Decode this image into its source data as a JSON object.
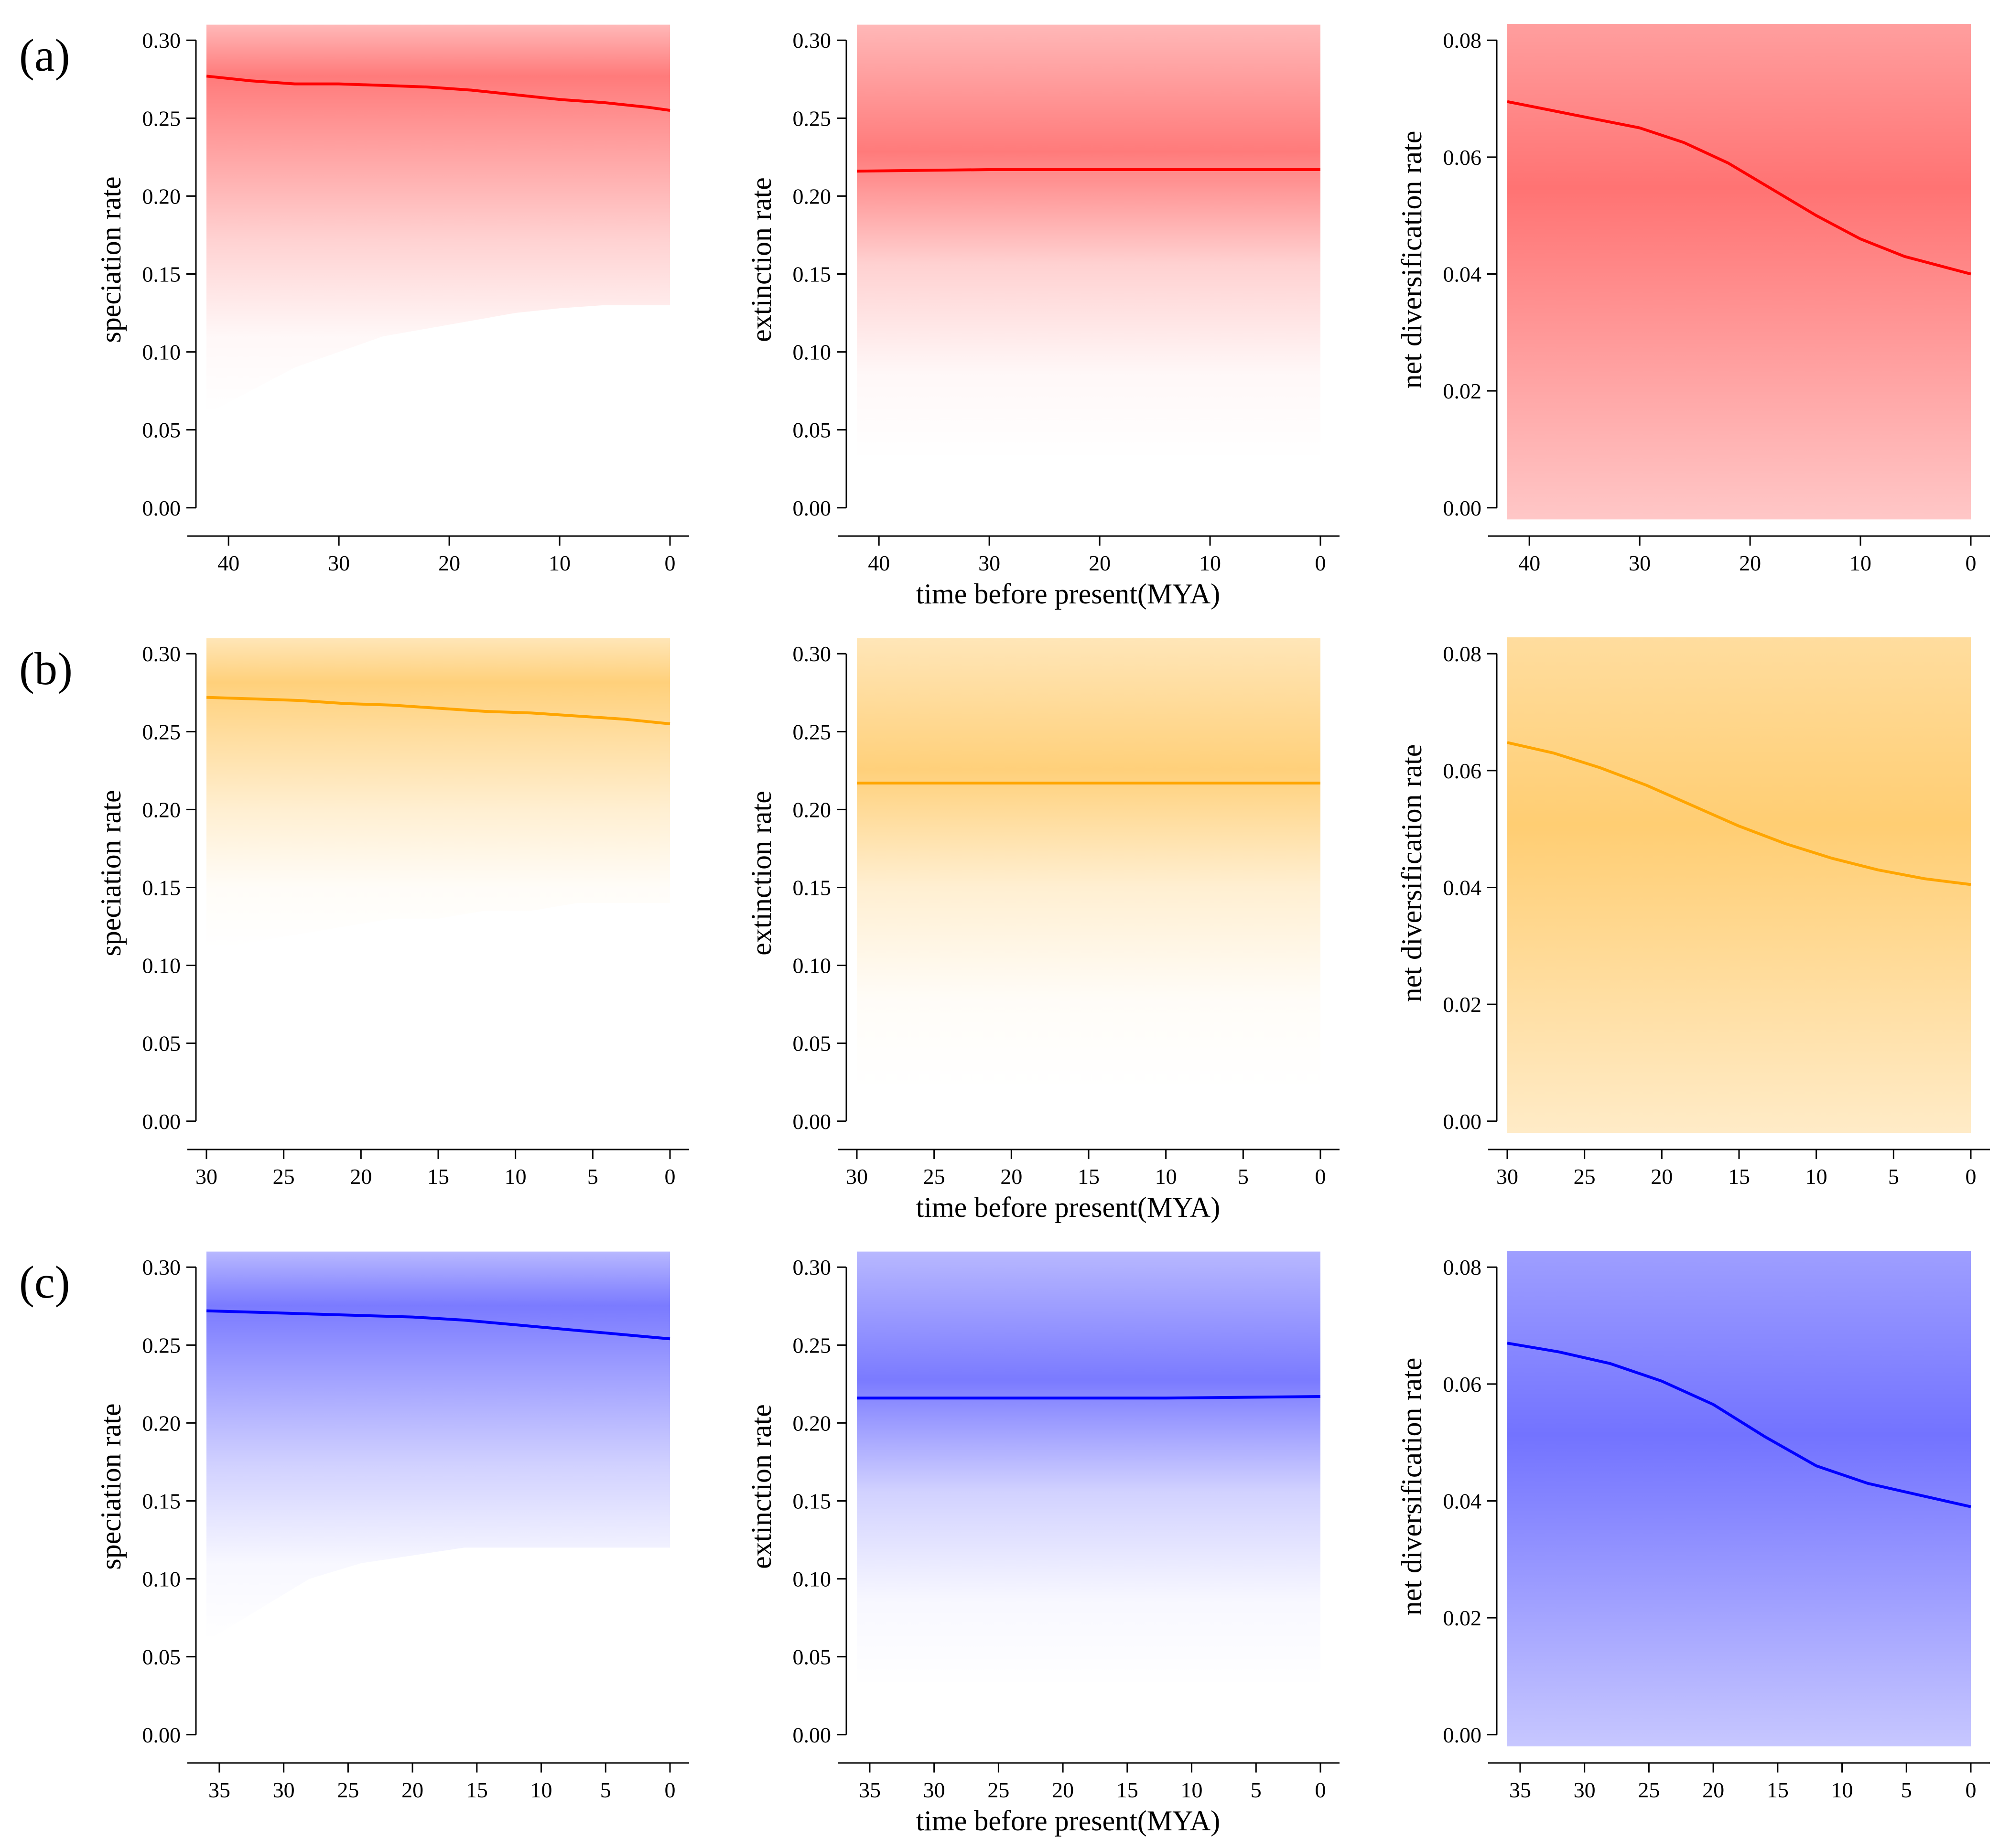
{
  "figure": {
    "rows": [
      {
        "label": "(a)",
        "color": "#ff0000",
        "xlabel": "time before present(MYA)"
      },
      {
        "label": "(b)",
        "color": "#ffa500",
        "xlabel": "time before present(MYA)"
      },
      {
        "label": "(c)",
        "color": "#0000ff",
        "xlabel": "time before present(MYA)"
      }
    ]
  },
  "chart_data": [
    {
      "type": "line",
      "row": 0,
      "col": 0,
      "color": "#ff0000",
      "ylabel": "speciation rate",
      "xlim": [
        42,
        0
      ],
      "ylim": [
        0.0,
        0.3
      ],
      "xticks": [
        40,
        30,
        20,
        10,
        0
      ],
      "yticks": [
        "0.00",
        "0.05",
        "0.10",
        "0.15",
        "0.20",
        "0.25",
        "0.30"
      ],
      "x": [
        42,
        38,
        34,
        30,
        26,
        22,
        18,
        14,
        10,
        6,
        2,
        0
      ],
      "y": [
        0.277,
        0.274,
        0.272,
        0.272,
        0.271,
        0.27,
        0.268,
        0.265,
        0.262,
        0.26,
        0.257,
        0.255
      ],
      "band_low": [
        0.06,
        0.075,
        0.09,
        0.1,
        0.11,
        0.115,
        0.12,
        0.125,
        0.128,
        0.13,
        0.13,
        0.13
      ],
      "band_high": [
        0.31,
        0.31,
        0.31,
        0.31,
        0.31,
        0.31,
        0.31,
        0.31,
        0.31,
        0.31,
        0.31,
        0.31
      ]
    },
    {
      "type": "line",
      "row": 0,
      "col": 1,
      "color": "#ff0000",
      "ylabel": "extinction rate",
      "xlim": [
        42,
        0
      ],
      "ylim": [
        0.0,
        0.3
      ],
      "xticks": [
        40,
        30,
        20,
        10,
        0
      ],
      "yticks": [
        "0.00",
        "0.05",
        "0.10",
        "0.15",
        "0.20",
        "0.25",
        "0.30"
      ],
      "x": [
        42,
        30,
        20,
        10,
        0
      ],
      "y": [
        0.216,
        0.217,
        0.217,
        0.217,
        0.217
      ],
      "band_low": [
        0.03,
        0.03,
        0.03,
        0.03,
        0.03
      ],
      "band_high": [
        0.31,
        0.31,
        0.31,
        0.31,
        0.31
      ]
    },
    {
      "type": "line",
      "row": 0,
      "col": 2,
      "color": "#ff0000",
      "ylabel": "net diversification rate",
      "xlim": [
        42,
        0
      ],
      "ylim": [
        0.0,
        0.08
      ],
      "xticks": [
        40,
        30,
        20,
        10,
        0
      ],
      "yticks": [
        "0.00",
        "0.02",
        "0.04",
        "0.06",
        "0.08"
      ],
      "x": [
        42,
        38,
        34,
        30,
        26,
        22,
        18,
        14,
        10,
        6,
        2,
        0
      ],
      "y": [
        0.0695,
        0.068,
        0.0665,
        0.065,
        0.0625,
        0.059,
        0.0545,
        0.05,
        0.046,
        0.043,
        0.041,
        0.04
      ],
      "band_low": [
        -0.002,
        -0.002,
        -0.002,
        -0.002,
        -0.002,
        -0.002,
        -0.002,
        -0.002,
        -0.002,
        -0.002,
        -0.002,
        -0.002
      ],
      "band_high": [
        0.083,
        0.083,
        0.083,
        0.083,
        0.083,
        0.083,
        0.083,
        0.083,
        0.083,
        0.083,
        0.083,
        0.083
      ]
    },
    {
      "type": "line",
      "row": 1,
      "col": 0,
      "color": "#ffa500",
      "ylabel": "speciation rate",
      "xlim": [
        30,
        0
      ],
      "ylim": [
        0.0,
        0.3
      ],
      "xticks": [
        30,
        25,
        20,
        15,
        10,
        5,
        0
      ],
      "yticks": [
        "0.00",
        "0.05",
        "0.10",
        "0.15",
        "0.20",
        "0.25",
        "0.30"
      ],
      "x": [
        30,
        27,
        24,
        21,
        18,
        15,
        12,
        9,
        6,
        3,
        0
      ],
      "y": [
        0.272,
        0.271,
        0.27,
        0.268,
        0.267,
        0.265,
        0.263,
        0.262,
        0.26,
        0.258,
        0.255
      ],
      "band_low": [
        0.11,
        0.115,
        0.12,
        0.125,
        0.13,
        0.13,
        0.135,
        0.135,
        0.14,
        0.14,
        0.14
      ],
      "band_high": [
        0.31,
        0.31,
        0.31,
        0.31,
        0.31,
        0.31,
        0.31,
        0.31,
        0.31,
        0.31,
        0.31
      ]
    },
    {
      "type": "line",
      "row": 1,
      "col": 1,
      "color": "#ffa500",
      "ylabel": "extinction rate",
      "xlim": [
        30,
        0
      ],
      "ylim": [
        0.0,
        0.3
      ],
      "xticks": [
        30,
        25,
        20,
        15,
        10,
        5,
        0
      ],
      "yticks": [
        "0.00",
        "0.05",
        "0.10",
        "0.15",
        "0.20",
        "0.25",
        "0.30"
      ],
      "x": [
        30,
        20,
        10,
        0
      ],
      "y": [
        0.217,
        0.217,
        0.217,
        0.217
      ],
      "band_low": [
        0.02,
        0.02,
        0.02,
        0.02
      ],
      "band_high": [
        0.31,
        0.31,
        0.31,
        0.31
      ]
    },
    {
      "type": "line",
      "row": 1,
      "col": 2,
      "color": "#ffa500",
      "ylabel": "net diversification rate",
      "xlim": [
        30,
        0
      ],
      "ylim": [
        0.0,
        0.08
      ],
      "xticks": [
        30,
        25,
        20,
        15,
        10,
        5,
        0
      ],
      "yticks": [
        "0.00",
        "0.02",
        "0.04",
        "0.06",
        "0.08"
      ],
      "x": [
        30,
        27,
        24,
        21,
        18,
        15,
        12,
        9,
        6,
        3,
        0
      ],
      "y": [
        0.0648,
        0.063,
        0.0605,
        0.0575,
        0.054,
        0.0505,
        0.0475,
        0.045,
        0.043,
        0.0415,
        0.0405
      ],
      "band_low": [
        -0.002,
        -0.002,
        -0.002,
        -0.002,
        -0.002,
        -0.002,
        -0.002,
        -0.002,
        -0.002,
        -0.002,
        -0.002
      ],
      "band_high": [
        0.083,
        0.083,
        0.083,
        0.083,
        0.083,
        0.083,
        0.083,
        0.083,
        0.083,
        0.083,
        0.083
      ]
    },
    {
      "type": "line",
      "row": 2,
      "col": 0,
      "color": "#0000ff",
      "ylabel": "speciation rate",
      "xlim": [
        36,
        0
      ],
      "ylim": [
        0.0,
        0.3
      ],
      "xticks": [
        35,
        30,
        25,
        20,
        15,
        10,
        5,
        0
      ],
      "yticks": [
        "0.00",
        "0.05",
        "0.10",
        "0.15",
        "0.20",
        "0.25",
        "0.30"
      ],
      "x": [
        36,
        32,
        28,
        24,
        20,
        16,
        12,
        8,
        4,
        0
      ],
      "y": [
        0.272,
        0.271,
        0.27,
        0.269,
        0.268,
        0.266,
        0.263,
        0.26,
        0.257,
        0.254
      ],
      "band_low": [
        0.06,
        0.08,
        0.1,
        0.11,
        0.115,
        0.12,
        0.12,
        0.12,
        0.12,
        0.12
      ],
      "band_high": [
        0.31,
        0.31,
        0.31,
        0.31,
        0.31,
        0.31,
        0.31,
        0.31,
        0.31,
        0.31
      ]
    },
    {
      "type": "line",
      "row": 2,
      "col": 1,
      "color": "#0000ff",
      "ylabel": "extinction rate",
      "xlim": [
        36,
        0
      ],
      "ylim": [
        0.0,
        0.3
      ],
      "xticks": [
        35,
        30,
        25,
        20,
        15,
        10,
        5,
        0
      ],
      "yticks": [
        "0.00",
        "0.05",
        "0.10",
        "0.15",
        "0.20",
        "0.25",
        "0.30"
      ],
      "x": [
        36,
        24,
        12,
        0
      ],
      "y": [
        0.216,
        0.216,
        0.216,
        0.217
      ],
      "band_low": [
        0.03,
        0.03,
        0.03,
        0.03
      ],
      "band_high": [
        0.31,
        0.31,
        0.31,
        0.31
      ]
    },
    {
      "type": "line",
      "row": 2,
      "col": 2,
      "color": "#0000ff",
      "ylabel": "net diversification rate",
      "xlim": [
        36,
        0
      ],
      "ylim": [
        0.0,
        0.08
      ],
      "xticks": [
        35,
        30,
        25,
        20,
        15,
        10,
        5,
        0
      ],
      "yticks": [
        "0.00",
        "0.02",
        "0.04",
        "0.06",
        "0.08"
      ],
      "x": [
        36,
        32,
        28,
        24,
        20,
        16,
        12,
        8,
        4,
        0
      ],
      "y": [
        0.067,
        0.0655,
        0.0635,
        0.0605,
        0.0565,
        0.051,
        0.046,
        0.043,
        0.041,
        0.039
      ],
      "band_low": [
        -0.002,
        -0.002,
        -0.002,
        -0.002,
        -0.002,
        -0.002,
        -0.002,
        -0.002,
        -0.002,
        -0.002
      ],
      "band_high": [
        0.083,
        0.083,
        0.083,
        0.083,
        0.083,
        0.083,
        0.083,
        0.083,
        0.083,
        0.083
      ]
    }
  ]
}
